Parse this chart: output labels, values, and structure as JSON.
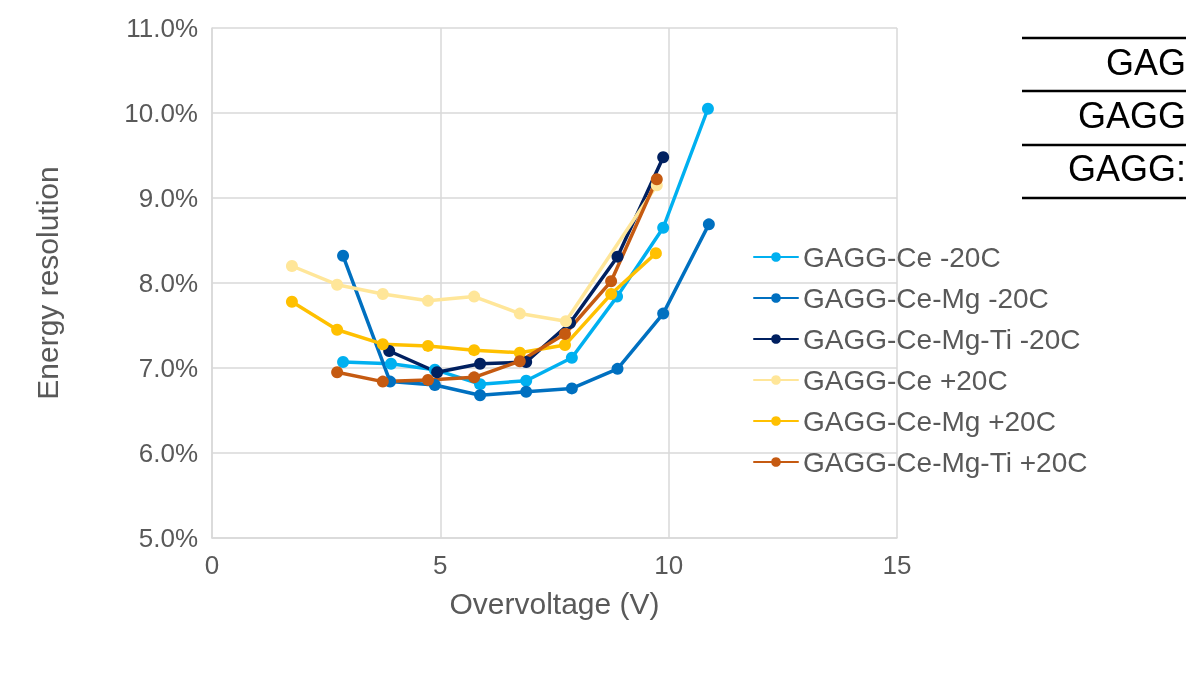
{
  "chart_data": {
    "type": "line",
    "xlabel": "Overvoltage (V)",
    "ylabel": "Energy resolution",
    "xlim": [
      0,
      15
    ],
    "xticks": [
      0,
      5,
      10,
      15
    ],
    "ylim": [
      5,
      11
    ],
    "yticks": [
      {
        "value": 5,
        "label": "5.0%"
      },
      {
        "value": 6,
        "label": "6.0%"
      },
      {
        "value": 7,
        "label": "7.0%"
      },
      {
        "value": 8,
        "label": "8.0%"
      },
      {
        "value": 9,
        "label": "9.0%"
      },
      {
        "value": 10,
        "label": "10.0%"
      },
      {
        "value": 11,
        "label": "11.0%"
      }
    ],
    "grid": true,
    "legend": "right",
    "marker": "circle",
    "line_style": "solid",
    "annotations": [
      "GAG",
      "GAGG",
      "GAGG:"
    ],
    "series": [
      {
        "name": "GAGG-Ce -20C",
        "color": "#00b0f0",
        "x": [
          2.87,
          3.92,
          4.88,
          5.87,
          6.88,
          7.88,
          8.87,
          9.88,
          10.86
        ],
        "values": [
          7.07,
          7.05,
          6.98,
          6.81,
          6.85,
          7.12,
          7.84,
          8.65,
          10.05
        ]
      },
      {
        "name": "GAGG-Ce-Mg -20C",
        "color": "#0070c0",
        "x": [
          2.87,
          3.9,
          4.88,
          5.87,
          6.88,
          7.88,
          8.88,
          9.88,
          10.88
        ],
        "values": [
          8.32,
          6.84,
          6.8,
          6.68,
          6.72,
          6.76,
          6.99,
          7.64,
          8.69
        ]
      },
      {
        "name": "GAGG-Ce-Mg-Ti -20C",
        "color": "#002060",
        "x": [
          3.88,
          4.93,
          5.87,
          6.88,
          7.84,
          8.88,
          9.88
        ],
        "values": [
          7.2,
          6.95,
          7.05,
          7.07,
          7.53,
          8.31,
          9.48
        ]
      },
      {
        "name": "GAGG-Ce +20C",
        "color": "#ffe699",
        "x": [
          1.75,
          2.74,
          3.74,
          4.73,
          5.74,
          6.74,
          7.75,
          8.74,
          9.74
        ],
        "values": [
          8.2,
          7.98,
          7.87,
          7.79,
          7.84,
          7.64,
          7.55,
          null,
          9.15
        ]
      },
      {
        "name": "GAGG-Ce-Mg +20C",
        "color": "#ffc000",
        "x": [
          1.75,
          2.74,
          3.74,
          4.73,
          5.74,
          6.74,
          7.73,
          8.74,
          9.72
        ],
        "values": [
          7.78,
          7.45,
          7.28,
          7.26,
          7.21,
          7.18,
          7.27,
          7.87,
          8.35
        ]
      },
      {
        "name": "GAGG-Ce-Mg-Ti +20C",
        "color": "#c55a11",
        "x": [
          2.74,
          3.74,
          4.73,
          5.74,
          6.74,
          7.73,
          8.74,
          9.74
        ],
        "values": [
          6.95,
          6.84,
          6.86,
          6.89,
          7.08,
          7.4,
          8.02,
          9.22
        ]
      }
    ]
  }
}
